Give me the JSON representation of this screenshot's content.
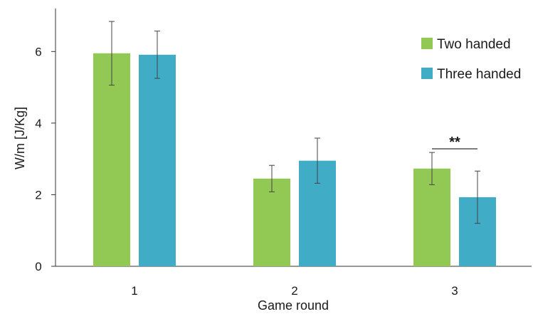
{
  "chart_data": {
    "type": "bar",
    "categories": [
      "1",
      "2",
      "3"
    ],
    "series": [
      {
        "name": "Two handed",
        "color": "#92c954",
        "values": [
          5.95,
          2.45,
          2.73
        ],
        "errors": [
          0.89,
          0.37,
          0.45
        ]
      },
      {
        "name": "Three handed",
        "color": "#41acc6",
        "values": [
          5.91,
          2.95,
          1.93
        ],
        "errors": [
          0.66,
          0.63,
          0.73
        ]
      }
    ],
    "xlabel": "Game round",
    "ylabel": "W/m [J/Kg]",
    "ylim": [
      0,
      7.2
    ],
    "yticks": [
      "0",
      "2",
      "4",
      "6"
    ],
    "grid": false,
    "legend_position": "top-right",
    "annotations": [
      {
        "text": "**",
        "category": "3",
        "between_series": [
          "Two handed",
          "Three handed"
        ]
      }
    ]
  }
}
